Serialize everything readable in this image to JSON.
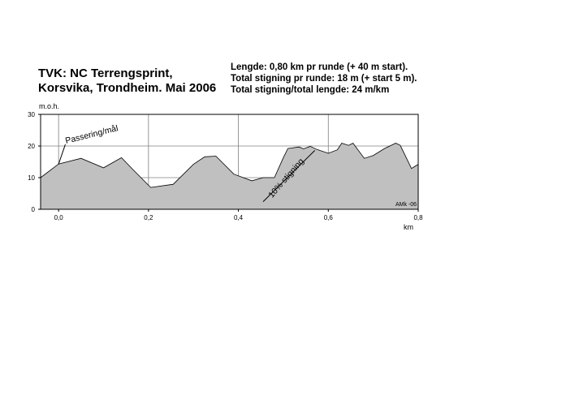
{
  "title": {
    "line1": "TVK: NC Terrengsprint,",
    "line2": "Korsvika, Trondheim. Mai 2006"
  },
  "stats": {
    "line1": "Lengde: 0,80 km pr runde (+ 40 m start).",
    "line2": "Total stigning pr runde: 18 m (+ start 5 m).",
    "line3": "Total stigning/total lengde:  24 m/km"
  },
  "chart_data": {
    "type": "area",
    "ylabel": "m.o.h.",
    "xlabel": "km",
    "xlim": [
      -0.04,
      0.8
    ],
    "ylim": [
      0,
      30
    ],
    "x_ticks": [
      0.0,
      0.2,
      0.4,
      0.6,
      0.8
    ],
    "x_tick_labels": [
      "0,0",
      "0,2",
      "0,4",
      "0,6",
      "0,8"
    ],
    "y_ticks": [
      0,
      10,
      20,
      30
    ],
    "y_tick_labels": [
      "0",
      "10",
      "20",
      "30"
    ],
    "grid": true,
    "fill_color": "#c0c0c0",
    "x": [
      -0.04,
      0.0,
      0.05,
      0.1,
      0.14,
      0.165,
      0.205,
      0.255,
      0.3,
      0.325,
      0.35,
      0.39,
      0.43,
      0.455,
      0.48,
      0.5,
      0.51,
      0.535,
      0.545,
      0.56,
      0.575,
      0.6,
      0.62,
      0.63,
      0.645,
      0.655,
      0.68,
      0.7,
      0.725,
      0.75,
      0.76,
      0.785,
      0.8
    ],
    "y": [
      10,
      14.3,
      16.1,
      13.1,
      16.3,
      12.6,
      6.9,
      7.9,
      14.2,
      16.6,
      16.8,
      11.1,
      9,
      10,
      10,
      16.3,
      19.2,
      19.7,
      19.1,
      19.9,
      18.9,
      17.7,
      18.8,
      20.9,
      20.2,
      20.9,
      16.1,
      17,
      19.2,
      20.9,
      20.2,
      12.9,
      14.2
    ],
    "annotations": [
      {
        "text": "Passering/mål",
        "x": 0.015,
        "y": 20.5
      },
      {
        "text": "10% stigning",
        "x": 0.475,
        "y": 3.5
      }
    ],
    "credit": "AMk -06"
  }
}
